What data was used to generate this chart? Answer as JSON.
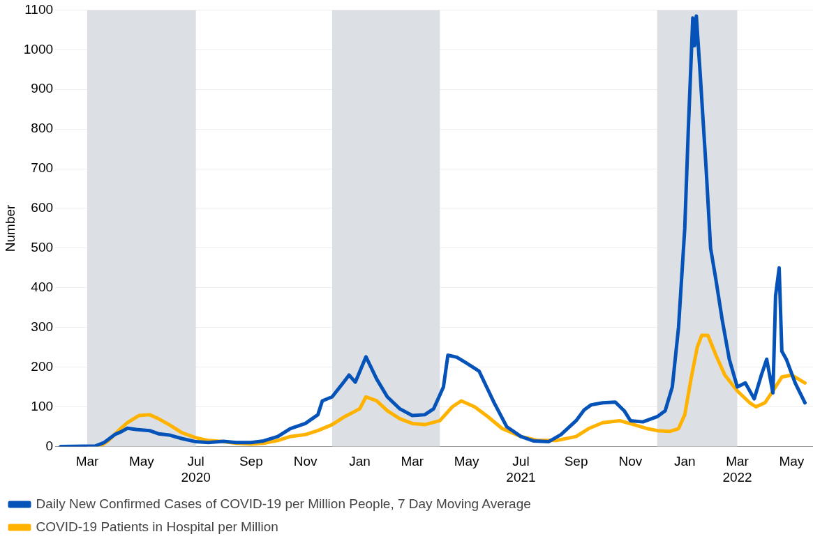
{
  "chart_data": {
    "type": "line",
    "ylabel": "Number",
    "xlim": [
      "2020-01-25",
      "2022-05-25"
    ],
    "ylim": [
      0,
      1100
    ],
    "yticks": [
      0,
      100,
      200,
      300,
      400,
      500,
      600,
      700,
      800,
      900,
      1000,
      1100
    ],
    "xticks": [
      {
        "value": "2020-03",
        "label": "Mar"
      },
      {
        "value": "2020-05",
        "label": "May"
      },
      {
        "value": "2020-07",
        "label": "Jul\n2020"
      },
      {
        "value": "2020-09",
        "label": "Sep"
      },
      {
        "value": "2020-11",
        "label": "Nov"
      },
      {
        "value": "2021-01",
        "label": "Jan"
      },
      {
        "value": "2021-03",
        "label": "Mar"
      },
      {
        "value": "2021-05",
        "label": "May"
      },
      {
        "value": "2021-07",
        "label": "Jul\n2021"
      },
      {
        "value": "2021-09",
        "label": "Sep"
      },
      {
        "value": "2021-11",
        "label": "Nov"
      },
      {
        "value": "2022-01",
        "label": "Jan"
      },
      {
        "value": "2022-03",
        "label": "Mar\n2022"
      },
      {
        "value": "2022-05",
        "label": "May"
      }
    ],
    "grid": "y",
    "legend": "bottom",
    "marker": "none",
    "line_style": "solid",
    "bands": [
      {
        "axis": "x",
        "from": "2020-03-01",
        "to": "2020-07-01",
        "color": "#dcdfe4"
      },
      {
        "axis": "x",
        "from": "2020-12-01",
        "to": "2021-04-01",
        "color": "#dcdfe4"
      },
      {
        "axis": "x",
        "from": "2021-12-01",
        "to": "2022-03-01",
        "color": "#dcdfe4"
      }
    ],
    "series": [
      {
        "name": "Daily New Confirmed Cases of COVID-19 per Million People, 7 Day Moving Average",
        "color": "#0553b8",
        "x": [
          "2020-01-31",
          "2020-03-10",
          "2020-03-20",
          "2020-04-01",
          "2020-04-08",
          "2020-04-15",
          "2020-04-25",
          "2020-05-10",
          "2020-05-20",
          "2020-06-01",
          "2020-06-15",
          "2020-07-01",
          "2020-07-15",
          "2020-08-01",
          "2020-08-15",
          "2020-09-01",
          "2020-09-15",
          "2020-10-01",
          "2020-10-15",
          "2020-11-01",
          "2020-11-15",
          "2020-11-20",
          "2020-12-01",
          "2020-12-15",
          "2020-12-20",
          "2020-12-27",
          "2021-01-08",
          "2021-01-20",
          "2021-02-01",
          "2021-02-15",
          "2021-03-01",
          "2021-03-15",
          "2021-03-25",
          "2021-04-01",
          "2021-04-05",
          "2021-04-10",
          "2021-04-20",
          "2021-05-01",
          "2021-05-15",
          "2021-06-01",
          "2021-06-15",
          "2021-07-01",
          "2021-07-15",
          "2021-08-01",
          "2021-08-15",
          "2021-09-01",
          "2021-09-10",
          "2021-09-18",
          "2021-10-01",
          "2021-10-15",
          "2021-10-25",
          "2021-11-01",
          "2021-11-15",
          "2021-12-01",
          "2021-12-10",
          "2021-12-18",
          "2021-12-25",
          "2022-01-01",
          "2022-01-05",
          "2022-01-10",
          "2022-01-12",
          "2022-01-14",
          "2022-01-18",
          "2022-01-25",
          "2022-01-30",
          "2022-02-05",
          "2022-02-12",
          "2022-02-20",
          "2022-03-01",
          "2022-03-10",
          "2022-03-20",
          "2022-03-28",
          "2022-04-03",
          "2022-04-10",
          "2022-04-13",
          "2022-04-17",
          "2022-04-20",
          "2022-04-25",
          "2022-05-05",
          "2022-05-16"
        ],
        "values": [
          0,
          1,
          10,
          30,
          37,
          46,
          43,
          40,
          32,
          29,
          20,
          12,
          10,
          13,
          10,
          10,
          14,
          25,
          45,
          58,
          80,
          115,
          125,
          165,
          180,
          162,
          226,
          170,
          125,
          95,
          78,
          80,
          95,
          130,
          150,
          230,
          225,
          210,
          190,
          110,
          50,
          25,
          14,
          12,
          30,
          65,
          92,
          105,
          110,
          112,
          90,
          65,
          62,
          75,
          90,
          150,
          300,
          550,
          800,
          1080,
          1010,
          1085,
          950,
          700,
          500,
          420,
          320,
          220,
          150,
          160,
          120,
          180,
          220,
          135,
          380,
          450,
          240,
          220,
          160,
          110
        ]
      },
      {
        "name": "COVID-19 Patients in Hospital per Million",
        "color": "#ffb300",
        "x": [
          "2020-03-15",
          "2020-03-25",
          "2020-04-05",
          "2020-04-15",
          "2020-04-28",
          "2020-05-10",
          "2020-05-20",
          "2020-06-01",
          "2020-06-15",
          "2020-07-01",
          "2020-07-15",
          "2020-08-01",
          "2020-08-15",
          "2020-09-01",
          "2020-09-15",
          "2020-10-01",
          "2020-10-15",
          "2020-11-01",
          "2020-11-15",
          "2020-12-01",
          "2020-12-15",
          "2021-01-01",
          "2021-01-08",
          "2021-01-20",
          "2021-02-01",
          "2021-02-15",
          "2021-03-01",
          "2021-03-15",
          "2021-04-01",
          "2021-04-15",
          "2021-04-25",
          "2021-05-10",
          "2021-05-25",
          "2021-06-10",
          "2021-07-01",
          "2021-07-20",
          "2021-08-10",
          "2021-09-01",
          "2021-09-15",
          "2021-10-01",
          "2021-10-20",
          "2021-11-05",
          "2021-11-20",
          "2021-12-01",
          "2021-12-15",
          "2021-12-25",
          "2022-01-01",
          "2022-01-08",
          "2022-01-15",
          "2022-01-20",
          "2022-01-27",
          "2022-02-05",
          "2022-02-15",
          "2022-03-01",
          "2022-03-15",
          "2022-03-22",
          "2022-04-01",
          "2022-04-10",
          "2022-04-20",
          "2022-05-01",
          "2022-05-16"
        ],
        "values": [
          0,
          15,
          40,
          60,
          78,
          80,
          70,
          55,
          35,
          22,
          15,
          12,
          8,
          6,
          8,
          15,
          25,
          30,
          40,
          55,
          75,
          95,
          125,
          115,
          90,
          70,
          58,
          55,
          65,
          100,
          115,
          100,
          75,
          45,
          25,
          15,
          15,
          25,
          45,
          60,
          65,
          55,
          45,
          40,
          38,
          45,
          80,
          170,
          250,
          280,
          280,
          230,
          180,
          140,
          110,
          100,
          110,
          140,
          175,
          180,
          160
        ]
      }
    ]
  }
}
